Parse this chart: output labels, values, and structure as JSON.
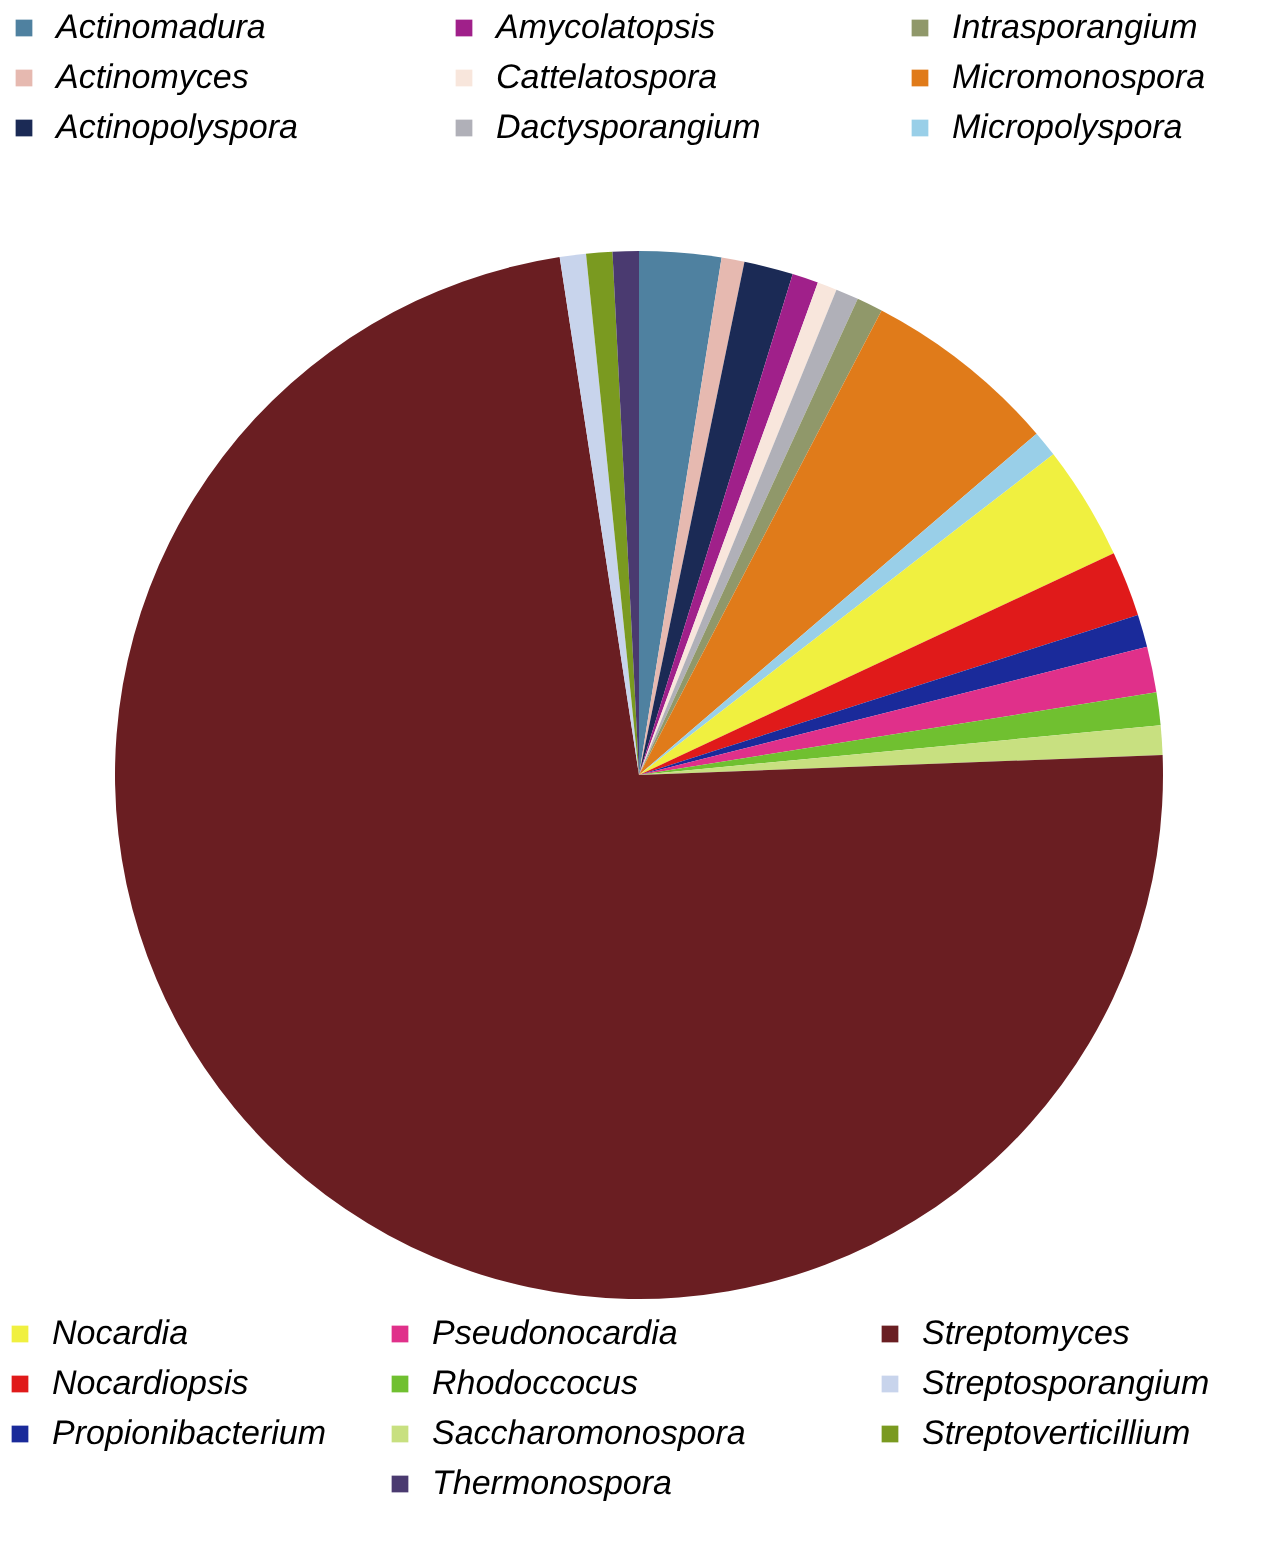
{
  "chart_data": {
    "type": "pie",
    "legend": "top",
    "categories": [
      "Actinomadura",
      "Actinomyces",
      "Actinopolyspora",
      "Amycolatopsis",
      "Cattelatospora",
      "Dactysporangium",
      "Intrasporangium",
      "Micromonospora",
      "Micropolyspora",
      "Nocardia",
      "Nocardiopsis",
      "Propionibacterium",
      "Pseudonocardia",
      "Rhodoccocus",
      "Saccharomonospora",
      "Streptomyces",
      "Streptosporangium",
      "Streptoverticillium",
      "Thermonospora"
    ],
    "values": [
      2.5,
      0.7,
      1.5,
      0.8,
      0.6,
      0.7,
      0.8,
      6,
      0.8,
      3.5,
      2,
      1,
      1.4,
      1,
      0.9,
      72.6,
      0.8,
      0.8,
      0.8
    ],
    "colors": [
      "#4f81a0",
      "#e6b9b0",
      "#1b2a55",
      "#a0208a",
      "#f8e6dc",
      "#b0b0b8",
      "#90986a",
      "#e07b1a",
      "#99cfe8",
      "#f0f040",
      "#e01a1a",
      "#1a2a9a",
      "#e0308a",
      "#70c030",
      "#c8e080",
      "#6a1e22",
      "#c8d4ec",
      "#7a9a20",
      "#4a3a70"
    ]
  }
}
